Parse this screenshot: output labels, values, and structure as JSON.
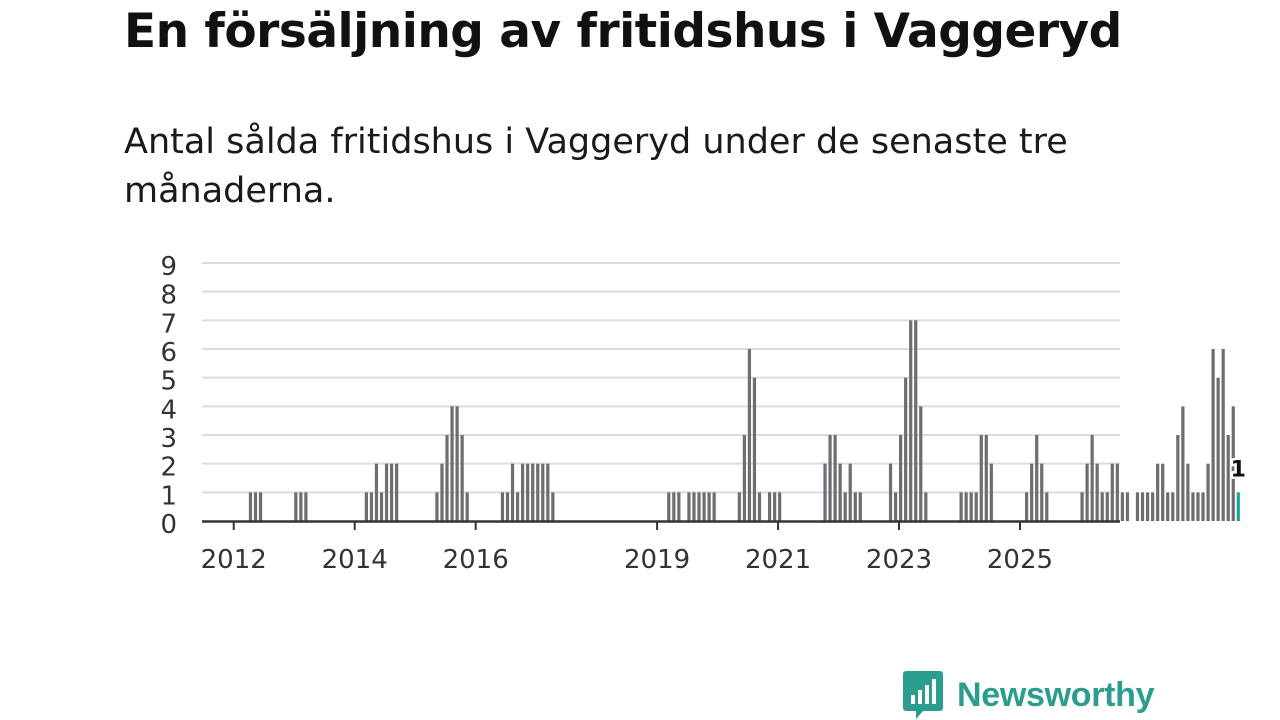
{
  "title": "En försäljning av fritidshus i Vaggeryd",
  "subtitle": "Antal sålda fritidshus i Vaggeryd under de senaste tre månaderna.",
  "brand": {
    "name": "Newsworthy",
    "logo_icon": "bar-chart-bubble-icon"
  },
  "colors": {
    "bar": "#6d6d72",
    "highlight": "#1aa39a",
    "grid": "#dcdcdc",
    "axis": "#333333",
    "brand": "#2a9d8f"
  },
  "chart_data": {
    "type": "bar",
    "x_unit": "month",
    "x_start": "2011-07",
    "ylim": [
      0,
      9
    ],
    "yticks": [
      "0",
      "1",
      "2",
      "3",
      "4",
      "5",
      "6",
      "7",
      "8",
      "9"
    ],
    "xticks": [
      "2012",
      "2014",
      "2016",
      "2019",
      "2021",
      "2023",
      "2025"
    ],
    "grid": true,
    "highlight_label": "1",
    "values": [
      0,
      0,
      0,
      0,
      0,
      0,
      0,
      0,
      0,
      1,
      1,
      1,
      0,
      0,
      0,
      0,
      0,
      0,
      1,
      1,
      1,
      0,
      0,
      0,
      0,
      0,
      0,
      0,
      0,
      0,
      0,
      0,
      1,
      1,
      2,
      1,
      2,
      2,
      2,
      0,
      0,
      0,
      0,
      0,
      0,
      0,
      1,
      2,
      3,
      4,
      4,
      3,
      1,
      0,
      0,
      0,
      0,
      0,
      0,
      1,
      1,
      2,
      1,
      2,
      2,
      2,
      2,
      2,
      2,
      1,
      0,
      0,
      0,
      0,
      0,
      0,
      0,
      0,
      0,
      0,
      0,
      0,
      0,
      0,
      0,
      0,
      0,
      0,
      0,
      0,
      0,
      0,
      1,
      1,
      1,
      0,
      1,
      1,
      1,
      1,
      1,
      1,
      0,
      0,
      0,
      0,
      1,
      3,
      6,
      5,
      1,
      0,
      1,
      1,
      1,
      0,
      0,
      0,
      0,
      0,
      0,
      0,
      0,
      2,
      3,
      3,
      2,
      1,
      2,
      1,
      1,
      0,
      0,
      0,
      0,
      0,
      2,
      1,
      3,
      5,
      7,
      7,
      4,
      1,
      0,
      0,
      0,
      0,
      0,
      0,
      1,
      1,
      1,
      1,
      3,
      3,
      2,
      0,
      0,
      0,
      0,
      0,
      0,
      1,
      2,
      3,
      2,
      1,
      0,
      0,
      0,
      0,
      0,
      0,
      1,
      2,
      3,
      2,
      1,
      1,
      2,
      2,
      1,
      1,
      0,
      1,
      1,
      1,
      1,
      2,
      2,
      1,
      1,
      3,
      4,
      2,
      1,
      1,
      1,
      2,
      6,
      5,
      6,
      3,
      4,
      1
    ]
  }
}
